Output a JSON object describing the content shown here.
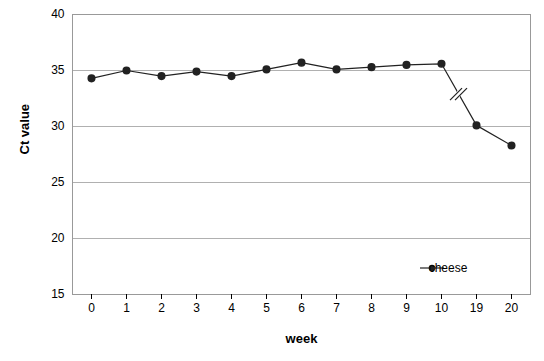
{
  "chart_data": {
    "type": "line",
    "x_label": "week",
    "y_label": "Ct value",
    "categories": [
      "0",
      "1",
      "2",
      "3",
      "4",
      "5",
      "6",
      "7",
      "8",
      "9",
      "10",
      "19",
      "20"
    ],
    "series": [
      {
        "name": "cheese",
        "color": "#222222",
        "marker": "circle",
        "line_style": "solid",
        "values": [
          34.3,
          35.0,
          34.5,
          34.9,
          34.5,
          35.1,
          35.7,
          35.1,
          35.3,
          35.5,
          35.6,
          30.1,
          28.3
        ]
      }
    ],
    "ylim": [
      15,
      40
    ],
    "yticks": [
      15,
      20,
      25,
      30,
      35,
      40
    ],
    "grid": true,
    "legend": "lower right"
  }
}
